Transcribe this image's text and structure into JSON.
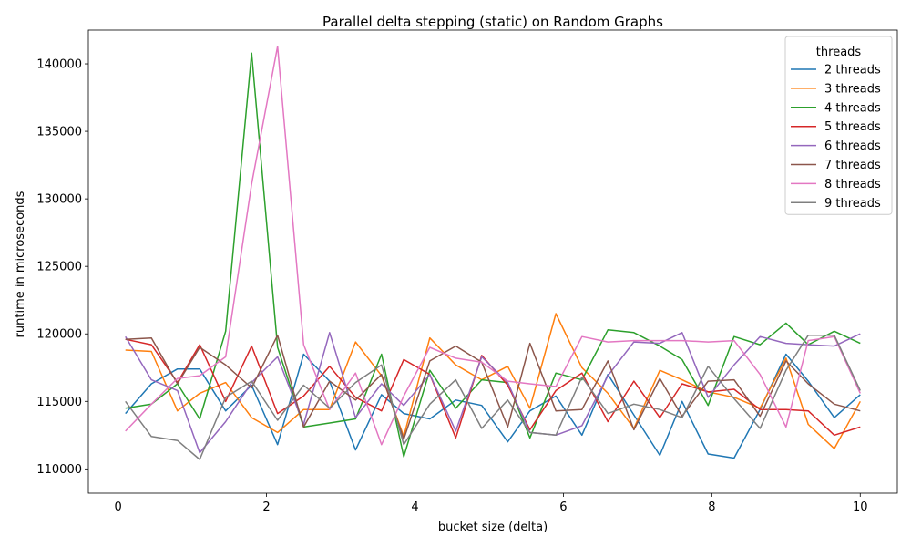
{
  "chart_data": {
    "type": "line",
    "title": "Parallel delta stepping (static) on Random Graphs",
    "xlabel": "bucket size (delta)",
    "ylabel": "runtime in microseconds",
    "xlim": [
      -0.4,
      10.5
    ],
    "ylim": [
      108200,
      142500
    ],
    "xticks": [
      0,
      2,
      4,
      6,
      8,
      10
    ],
    "yticks": [
      110000,
      115000,
      120000,
      125000,
      130000,
      135000,
      140000
    ],
    "grid": false,
    "legend": {
      "title": "threads",
      "placement": "top-right"
    },
    "x": [
      0.1,
      0.45,
      0.8,
      1.1,
      1.45,
      1.8,
      2.15,
      2.5,
      2.85,
      3.2,
      3.55,
      3.85,
      4.2,
      4.55,
      4.9,
      5.25,
      5.55,
      5.9,
      6.25,
      6.6,
      6.95,
      7.3,
      7.6,
      7.95,
      8.3,
      8.65,
      9.0,
      9.3,
      9.65,
      10.0
    ],
    "series": [
      {
        "name": "2 threads",
        "color": "#1f77b4",
        "values": [
          114100,
          116300,
          117400,
          117400,
          114300,
          116200,
          111800,
          118500,
          116500,
          111400,
          115500,
          114100,
          113700,
          115100,
          114700,
          112000,
          114300,
          115400,
          112500,
          117000,
          114000,
          111000,
          115000,
          111100,
          110800,
          114400,
          118500,
          116500,
          113800,
          115500
        ]
      },
      {
        "name": "3 threads",
        "color": "#ff7f0e",
        "values": [
          118800,
          118700,
          114300,
          115600,
          116400,
          113800,
          112700,
          114400,
          114400,
          119400,
          116900,
          112400,
          119700,
          117700,
          116600,
          117600,
          114500,
          121500,
          117500,
          115600,
          113000,
          117300,
          116600,
          115700,
          115300,
          114500,
          118200,
          113300,
          111500,
          115000
        ]
      },
      {
        "name": "4 threads",
        "color": "#2ca02c",
        "values": [
          114500,
          114800,
          116300,
          113700,
          120200,
          140800,
          119000,
          113100,
          113400,
          113700,
          118500,
          110900,
          117300,
          114500,
          116600,
          116400,
          112300,
          117100,
          116600,
          120300,
          120100,
          119100,
          118100,
          114700,
          119800,
          119200,
          120800,
          119200,
          120200,
          119300
        ]
      },
      {
        "name": "5 threads",
        "color": "#d62728",
        "values": [
          119600,
          119200,
          116400,
          119200,
          115000,
          119100,
          114100,
          115400,
          117600,
          115300,
          114300,
          118100,
          117000,
          112300,
          118400,
          116200,
          112900,
          115800,
          117100,
          113500,
          116500,
          113800,
          116300,
          115700,
          115900,
          114400,
          114400,
          114300,
          112500,
          113100
        ]
      },
      {
        "name": "6 threads",
        "color": "#9467bd",
        "values": [
          119800,
          116600,
          115800,
          111200,
          113500,
          116400,
          118300,
          113300,
          120100,
          113800,
          116300,
          114700,
          117000,
          112800,
          118300,
          116400,
          112700,
          112500,
          113200,
          116900,
          119400,
          119300,
          120100,
          115300,
          117700,
          119800,
          119300,
          119200,
          119100,
          120000
        ]
      },
      {
        "name": "7 threads",
        "color": "#8c564b",
        "values": [
          119600,
          119700,
          116300,
          119000,
          117700,
          116000,
          119900,
          113100,
          116500,
          115100,
          117000,
          112200,
          118000,
          119100,
          117900,
          113100,
          119300,
          114300,
          114400,
          118000,
          112900,
          116700,
          113900,
          116500,
          116600,
          113900,
          118000,
          116300,
          114800,
          114300
        ]
      },
      {
        "name": "8 threads",
        "color": "#e377c2",
        "values": [
          112800,
          114800,
          116700,
          116900,
          118300,
          131100,
          141300,
          119200,
          114400,
          117100,
          111800,
          115400,
          119000,
          118200,
          117900,
          116500,
          116300,
          116100,
          119800,
          119400,
          119500,
          119500,
          119500,
          119400,
          119500,
          117000,
          113100,
          119500,
          119800,
          115600
        ]
      },
      {
        "name": "9 threads",
        "color": "#7f7f7f",
        "values": [
          115000,
          112400,
          112100,
          110700,
          115300,
          116500,
          113600,
          116200,
          114500,
          116400,
          117700,
          111800,
          114800,
          116600,
          113000,
          115100,
          112700,
          112500,
          116800,
          114100,
          114800,
          114400,
          113800,
          117600,
          115200,
          113000,
          117300,
          119900,
          119900,
          115800
        ]
      }
    ]
  }
}
